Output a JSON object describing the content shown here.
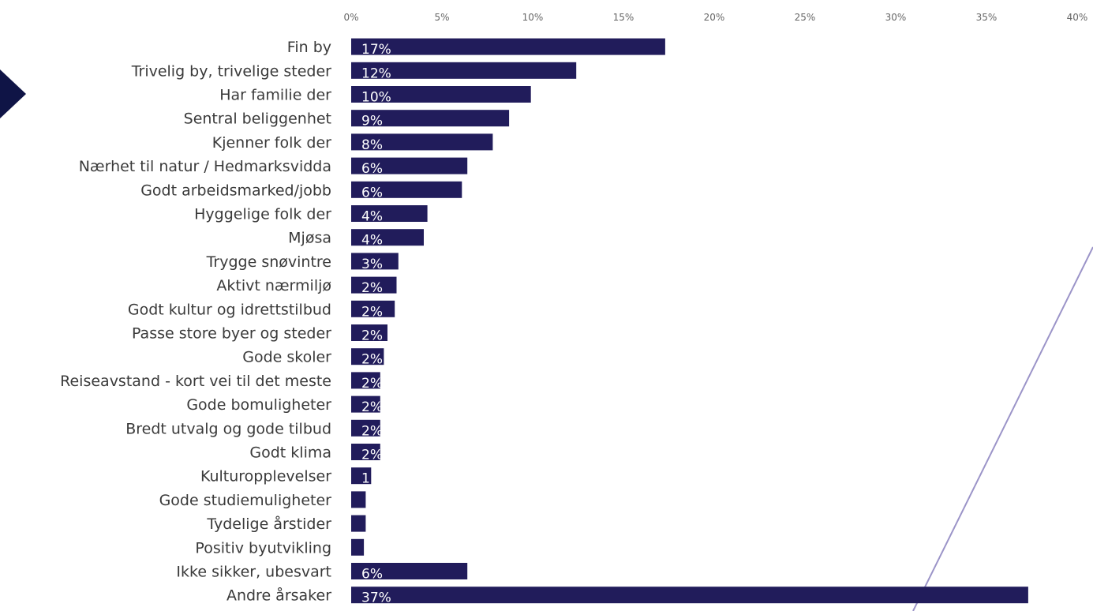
{
  "colors": {
    "bar": "#211c5b",
    "arrow": "#0f1446",
    "line": "#9b94c8",
    "axis_text": "#666666",
    "label_text": "#3a3a3a"
  },
  "chart_data": {
    "type": "bar",
    "orientation": "horizontal",
    "xlim": [
      0,
      40
    ],
    "ticks": [
      "0%",
      "5%",
      "10%",
      "15%",
      "20%",
      "25%",
      "30%",
      "35%",
      "40%"
    ],
    "tick_values": [
      0,
      5,
      10,
      15,
      20,
      25,
      30,
      35,
      40
    ],
    "axis_position": "top",
    "grid": false,
    "categories": [
      "Fin by",
      "Trivelig by, trivelige steder",
      "Har familie der",
      "Sentral beliggenhet",
      "Kjenner folk der",
      "Nærhet til natur / Hedmarksvidda",
      "Godt arbeidsmarked/jobb",
      "Hyggelige folk der",
      "Mjøsa",
      "Trygge snøvintre",
      "Aktivt nærmiljø",
      "Godt kultur og idrettstilbud",
      "Passe store byer og steder",
      "Gode skoler",
      "Reiseavstand - kort vei til det meste",
      "Gode bomuligheter",
      "Bredt utvalg og gode tilbud",
      "Godt klima",
      "Kulturopplevelser",
      "Gode studiemuligheter",
      "Tydelige årstider",
      "Positiv byutvikling",
      "Ikke sikker, ubesvart",
      "Andre årsaker"
    ],
    "values": [
      17.3,
      12.4,
      9.9,
      8.7,
      7.8,
      6.4,
      6.1,
      4.2,
      4.0,
      2.6,
      2.5,
      2.4,
      2.0,
      1.8,
      1.6,
      1.6,
      1.6,
      1.6,
      1.1,
      0.8,
      0.8,
      0.7,
      6.4,
      37.3
    ],
    "data_labels": [
      "17%",
      "12%",
      "10%",
      "9%",
      "8%",
      "6%",
      "6%",
      "4%",
      "4%",
      "3%",
      "2%",
      "2%",
      "2%",
      "2%",
      "2%",
      "2%",
      "2%",
      "2%",
      "1",
      "",
      "",
      "",
      "6%",
      "37%"
    ]
  }
}
